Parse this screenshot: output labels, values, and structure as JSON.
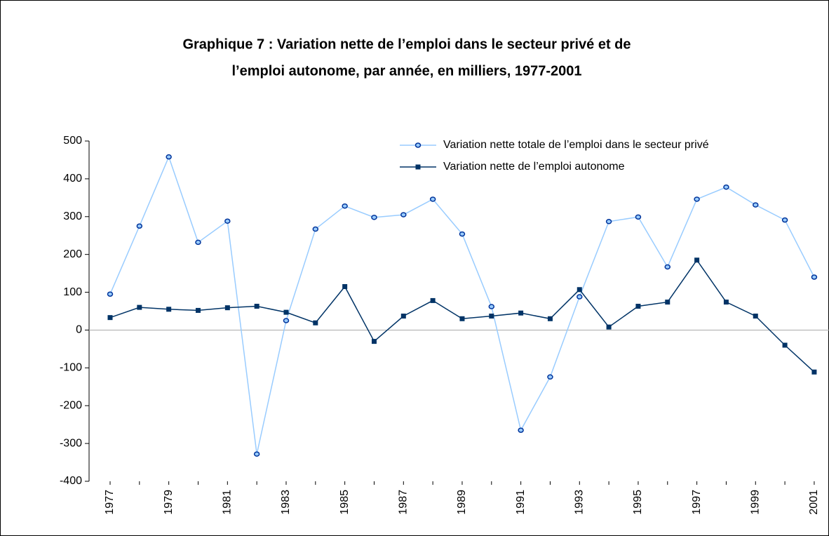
{
  "chart_data": {
    "type": "line",
    "title": [
      "Graphique 7 : Variation nette de l’emploi dans le secteur privé et de",
      "l’emploi autonome, par année, en milliers, 1977-2001"
    ],
    "categories": [
      "1977",
      null,
      "1979",
      null,
      "1981",
      null,
      "1983",
      null,
      "1985",
      null,
      "1987",
      null,
      "1989",
      null,
      "1991",
      null,
      "1993",
      null,
      "1995",
      null,
      "1997",
      null,
      "1999",
      null,
      "2001"
    ],
    "series": [
      {
        "name": "Variation nette totale de l’emploi dans le secteur privé",
        "color": "#99ccff",
        "marker": "circle",
        "values": [
          95,
          275,
          458,
          232,
          288,
          -328,
          25,
          267,
          328,
          298,
          305,
          346,
          254,
          62,
          -265,
          -124,
          88,
          287,
          299,
          167,
          346,
          378,
          331,
          291,
          140
        ]
      },
      {
        "name": "Variation nette de l’emploi autonome",
        "color": "#003366",
        "marker": "square",
        "values": [
          33,
          60,
          55,
          52,
          59,
          63,
          47,
          19,
          115,
          -30,
          37,
          78,
          30,
          37,
          45,
          30,
          107,
          8,
          63,
          74,
          185,
          74,
          37,
          -40,
          -111
        ]
      }
    ],
    "ylim": [
      -400,
      500
    ],
    "yticks": [
      -400,
      -300,
      -200,
      -100,
      0,
      100,
      200,
      300,
      400,
      500
    ],
    "grid": false,
    "legend": "top-right"
  }
}
